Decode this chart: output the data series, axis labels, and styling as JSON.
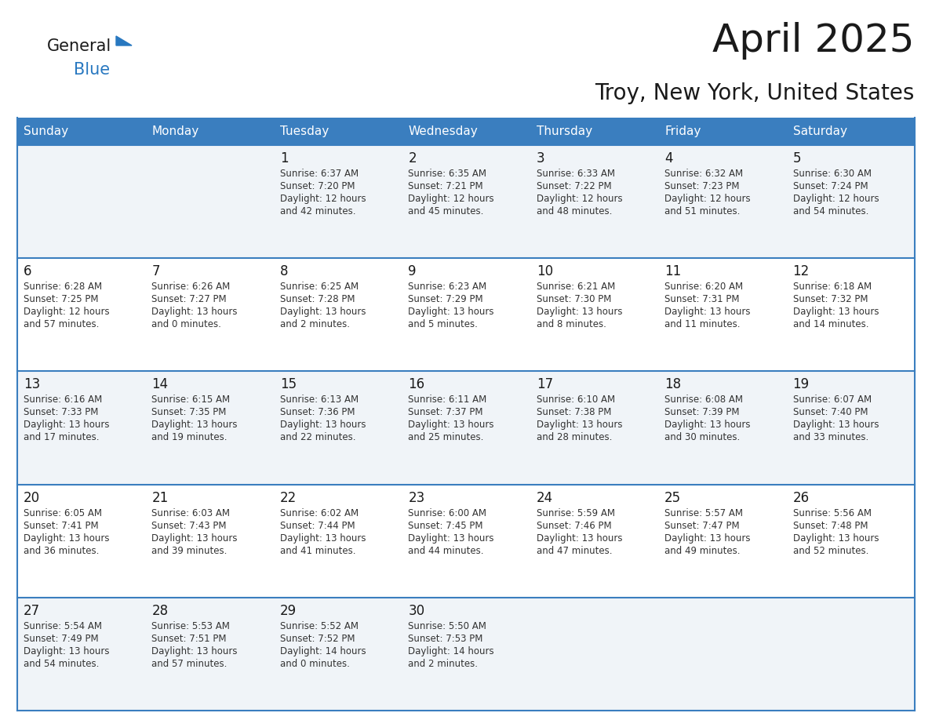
{
  "title": "April 2025",
  "subtitle": "Troy, New York, United States",
  "header_color": "#3a7ebf",
  "header_text_color": "#ffffff",
  "row_bg_colors": [
    "#f0f4f8",
    "#ffffff",
    "#f0f4f8",
    "#ffffff",
    "#f0f4f8"
  ],
  "border_color": "#3a7ebf",
  "day_headers": [
    "Sunday",
    "Monday",
    "Tuesday",
    "Wednesday",
    "Thursday",
    "Friday",
    "Saturday"
  ],
  "title_color": "#1a1a1a",
  "subtitle_color": "#1a1a1a",
  "number_color": "#1a1a1a",
  "text_color": "#333333",
  "logo_general_color": "#1a1a1a",
  "logo_blue_color": "#2878c0",
  "weeks": [
    [
      {
        "day": "",
        "sunrise": "",
        "sunset": "",
        "daylight": ""
      },
      {
        "day": "",
        "sunrise": "",
        "sunset": "",
        "daylight": ""
      },
      {
        "day": "1",
        "sunrise": "Sunrise: 6:37 AM",
        "sunset": "Sunset: 7:20 PM",
        "daylight": "Daylight: 12 hours\nand 42 minutes."
      },
      {
        "day": "2",
        "sunrise": "Sunrise: 6:35 AM",
        "sunset": "Sunset: 7:21 PM",
        "daylight": "Daylight: 12 hours\nand 45 minutes."
      },
      {
        "day": "3",
        "sunrise": "Sunrise: 6:33 AM",
        "sunset": "Sunset: 7:22 PM",
        "daylight": "Daylight: 12 hours\nand 48 minutes."
      },
      {
        "day": "4",
        "sunrise": "Sunrise: 6:32 AM",
        "sunset": "Sunset: 7:23 PM",
        "daylight": "Daylight: 12 hours\nand 51 minutes."
      },
      {
        "day": "5",
        "sunrise": "Sunrise: 6:30 AM",
        "sunset": "Sunset: 7:24 PM",
        "daylight": "Daylight: 12 hours\nand 54 minutes."
      }
    ],
    [
      {
        "day": "6",
        "sunrise": "Sunrise: 6:28 AM",
        "sunset": "Sunset: 7:25 PM",
        "daylight": "Daylight: 12 hours\nand 57 minutes."
      },
      {
        "day": "7",
        "sunrise": "Sunrise: 6:26 AM",
        "sunset": "Sunset: 7:27 PM",
        "daylight": "Daylight: 13 hours\nand 0 minutes."
      },
      {
        "day": "8",
        "sunrise": "Sunrise: 6:25 AM",
        "sunset": "Sunset: 7:28 PM",
        "daylight": "Daylight: 13 hours\nand 2 minutes."
      },
      {
        "day": "9",
        "sunrise": "Sunrise: 6:23 AM",
        "sunset": "Sunset: 7:29 PM",
        "daylight": "Daylight: 13 hours\nand 5 minutes."
      },
      {
        "day": "10",
        "sunrise": "Sunrise: 6:21 AM",
        "sunset": "Sunset: 7:30 PM",
        "daylight": "Daylight: 13 hours\nand 8 minutes."
      },
      {
        "day": "11",
        "sunrise": "Sunrise: 6:20 AM",
        "sunset": "Sunset: 7:31 PM",
        "daylight": "Daylight: 13 hours\nand 11 minutes."
      },
      {
        "day": "12",
        "sunrise": "Sunrise: 6:18 AM",
        "sunset": "Sunset: 7:32 PM",
        "daylight": "Daylight: 13 hours\nand 14 minutes."
      }
    ],
    [
      {
        "day": "13",
        "sunrise": "Sunrise: 6:16 AM",
        "sunset": "Sunset: 7:33 PM",
        "daylight": "Daylight: 13 hours\nand 17 minutes."
      },
      {
        "day": "14",
        "sunrise": "Sunrise: 6:15 AM",
        "sunset": "Sunset: 7:35 PM",
        "daylight": "Daylight: 13 hours\nand 19 minutes."
      },
      {
        "day": "15",
        "sunrise": "Sunrise: 6:13 AM",
        "sunset": "Sunset: 7:36 PM",
        "daylight": "Daylight: 13 hours\nand 22 minutes."
      },
      {
        "day": "16",
        "sunrise": "Sunrise: 6:11 AM",
        "sunset": "Sunset: 7:37 PM",
        "daylight": "Daylight: 13 hours\nand 25 minutes."
      },
      {
        "day": "17",
        "sunrise": "Sunrise: 6:10 AM",
        "sunset": "Sunset: 7:38 PM",
        "daylight": "Daylight: 13 hours\nand 28 minutes."
      },
      {
        "day": "18",
        "sunrise": "Sunrise: 6:08 AM",
        "sunset": "Sunset: 7:39 PM",
        "daylight": "Daylight: 13 hours\nand 30 minutes."
      },
      {
        "day": "19",
        "sunrise": "Sunrise: 6:07 AM",
        "sunset": "Sunset: 7:40 PM",
        "daylight": "Daylight: 13 hours\nand 33 minutes."
      }
    ],
    [
      {
        "day": "20",
        "sunrise": "Sunrise: 6:05 AM",
        "sunset": "Sunset: 7:41 PM",
        "daylight": "Daylight: 13 hours\nand 36 minutes."
      },
      {
        "day": "21",
        "sunrise": "Sunrise: 6:03 AM",
        "sunset": "Sunset: 7:43 PM",
        "daylight": "Daylight: 13 hours\nand 39 minutes."
      },
      {
        "day": "22",
        "sunrise": "Sunrise: 6:02 AM",
        "sunset": "Sunset: 7:44 PM",
        "daylight": "Daylight: 13 hours\nand 41 minutes."
      },
      {
        "day": "23",
        "sunrise": "Sunrise: 6:00 AM",
        "sunset": "Sunset: 7:45 PM",
        "daylight": "Daylight: 13 hours\nand 44 minutes."
      },
      {
        "day": "24",
        "sunrise": "Sunrise: 5:59 AM",
        "sunset": "Sunset: 7:46 PM",
        "daylight": "Daylight: 13 hours\nand 47 minutes."
      },
      {
        "day": "25",
        "sunrise": "Sunrise: 5:57 AM",
        "sunset": "Sunset: 7:47 PM",
        "daylight": "Daylight: 13 hours\nand 49 minutes."
      },
      {
        "day": "26",
        "sunrise": "Sunrise: 5:56 AM",
        "sunset": "Sunset: 7:48 PM",
        "daylight": "Daylight: 13 hours\nand 52 minutes."
      }
    ],
    [
      {
        "day": "27",
        "sunrise": "Sunrise: 5:54 AM",
        "sunset": "Sunset: 7:49 PM",
        "daylight": "Daylight: 13 hours\nand 54 minutes."
      },
      {
        "day": "28",
        "sunrise": "Sunrise: 5:53 AM",
        "sunset": "Sunset: 7:51 PM",
        "daylight": "Daylight: 13 hours\nand 57 minutes."
      },
      {
        "day": "29",
        "sunrise": "Sunrise: 5:52 AM",
        "sunset": "Sunset: 7:52 PM",
        "daylight": "Daylight: 14 hours\nand 0 minutes."
      },
      {
        "day": "30",
        "sunrise": "Sunrise: 5:50 AM",
        "sunset": "Sunset: 7:53 PM",
        "daylight": "Daylight: 14 hours\nand 2 minutes."
      },
      {
        "day": "",
        "sunrise": "",
        "sunset": "",
        "daylight": ""
      },
      {
        "day": "",
        "sunrise": "",
        "sunset": "",
        "daylight": ""
      },
      {
        "day": "",
        "sunrise": "",
        "sunset": "",
        "daylight": ""
      }
    ]
  ]
}
